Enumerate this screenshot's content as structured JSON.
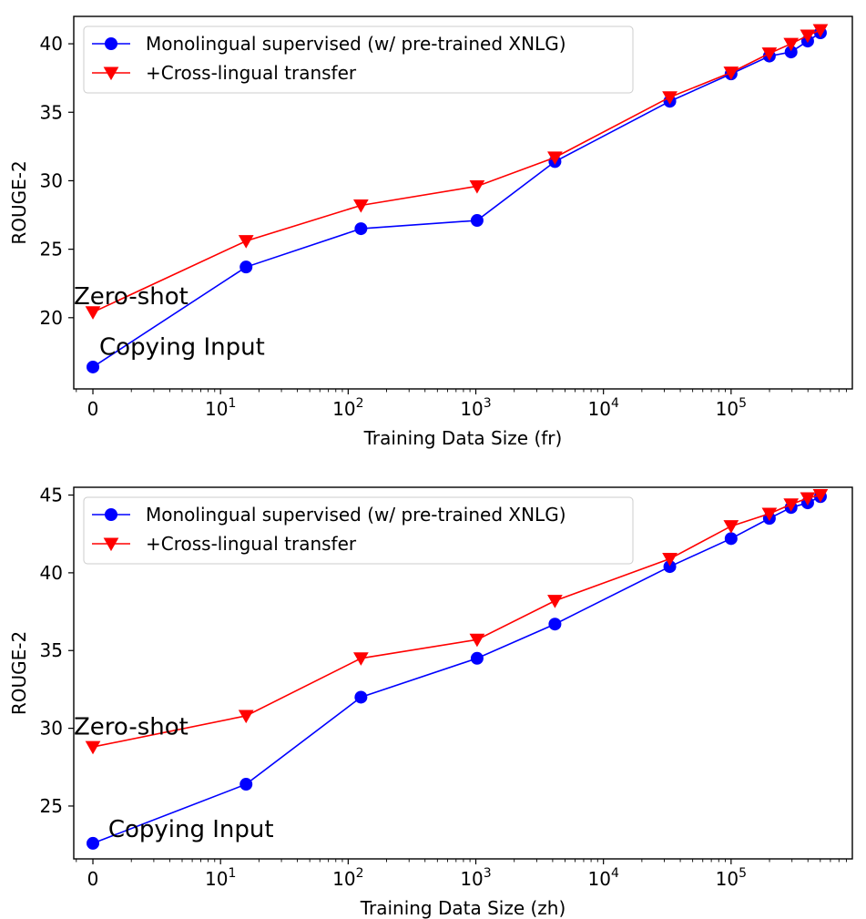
{
  "chart_data": [
    {
      "type": "line",
      "title": "",
      "xlabel": "Training Data Size (fr)",
      "ylabel": "ROUGE-2",
      "xscale": "symlog",
      "xlim": [
        -0.15,
        5.95
      ],
      "ylim": [
        14.8,
        42.0
      ],
      "grid": false,
      "legend": "upper-left",
      "x_ticks": [
        {
          "base": "0",
          "exp": "",
          "value": 0
        },
        {
          "base": "10",
          "exp": "1",
          "value": 1
        },
        {
          "base": "10",
          "exp": "2",
          "value": 2
        },
        {
          "base": "10",
          "exp": "3",
          "value": 3
        },
        {
          "base": "10",
          "exp": "4",
          "value": 4
        },
        {
          "base": "10",
          "exp": "5",
          "value": 5
        }
      ],
      "y_ticks": [
        20,
        25,
        30,
        35,
        40
      ],
      "series": [
        {
          "name": "Monolingual supervised (w/ pre-trained XNLG)",
          "color": "#0000ff",
          "marker": "circle",
          "x": [
            0,
            1.2,
            2.1,
            3.01,
            3.62,
            4.52,
            5.0,
            5.3,
            5.47,
            5.6,
            5.7
          ],
          "y": [
            16.4,
            23.7,
            26.5,
            27.1,
            31.4,
            35.8,
            37.8,
            39.1,
            39.4,
            40.2,
            40.8
          ]
        },
        {
          "name": "+Cross-lingual transfer",
          "color": "#ff0000",
          "marker": "triangle-down",
          "x": [
            0,
            1.2,
            2.1,
            3.01,
            3.62,
            4.52,
            5.0,
            5.3,
            5.47,
            5.6,
            5.7
          ],
          "y": [
            20.4,
            25.6,
            28.2,
            29.6,
            31.7,
            36.1,
            37.9,
            39.3,
            40.0,
            40.6,
            41.0
          ]
        }
      ],
      "annotations": [
        {
          "text": "Zero-shot",
          "x": -0.15,
          "y": 21.0
        },
        {
          "text": "Copying Input",
          "x": 0.05,
          "y": 17.3
        }
      ]
    },
    {
      "type": "line",
      "title": "",
      "xlabel": "Training Data Size (zh)",
      "ylabel": "ROUGE-2",
      "xscale": "symlog",
      "xlim": [
        -0.15,
        5.95
      ],
      "ylim": [
        21.6,
        45.5
      ],
      "grid": false,
      "legend": "upper-left",
      "x_ticks": [
        {
          "base": "0",
          "exp": "",
          "value": 0
        },
        {
          "base": "10",
          "exp": "1",
          "value": 1
        },
        {
          "base": "10",
          "exp": "2",
          "value": 2
        },
        {
          "base": "10",
          "exp": "3",
          "value": 3
        },
        {
          "base": "10",
          "exp": "4",
          "value": 4
        },
        {
          "base": "10",
          "exp": "5",
          "value": 5
        }
      ],
      "y_ticks": [
        25,
        30,
        35,
        40,
        45
      ],
      "series": [
        {
          "name": "Monolingual supervised (w/ pre-trained XNLG)",
          "color": "#0000ff",
          "marker": "circle",
          "x": [
            0,
            1.2,
            2.1,
            3.01,
            3.62,
            4.52,
            5.0,
            5.3,
            5.47,
            5.6,
            5.7
          ],
          "y": [
            22.6,
            26.4,
            32.0,
            34.5,
            36.7,
            40.4,
            42.2,
            43.5,
            44.2,
            44.5,
            44.9
          ]
        },
        {
          "name": "+Cross-lingual transfer",
          "color": "#ff0000",
          "marker": "triangle-down",
          "x": [
            0,
            1.2,
            2.1,
            3.01,
            3.62,
            4.52,
            5.0,
            5.3,
            5.47,
            5.6,
            5.7
          ],
          "y": [
            28.8,
            30.8,
            34.5,
            35.7,
            38.2,
            40.9,
            43.0,
            43.8,
            44.4,
            44.8,
            45.0
          ]
        }
      ],
      "annotations": [
        {
          "text": "Zero-shot",
          "x": -0.15,
          "y": 29.6
        },
        {
          "text": "Copying Input",
          "x": 0.12,
          "y": 23.0
        }
      ]
    }
  ]
}
